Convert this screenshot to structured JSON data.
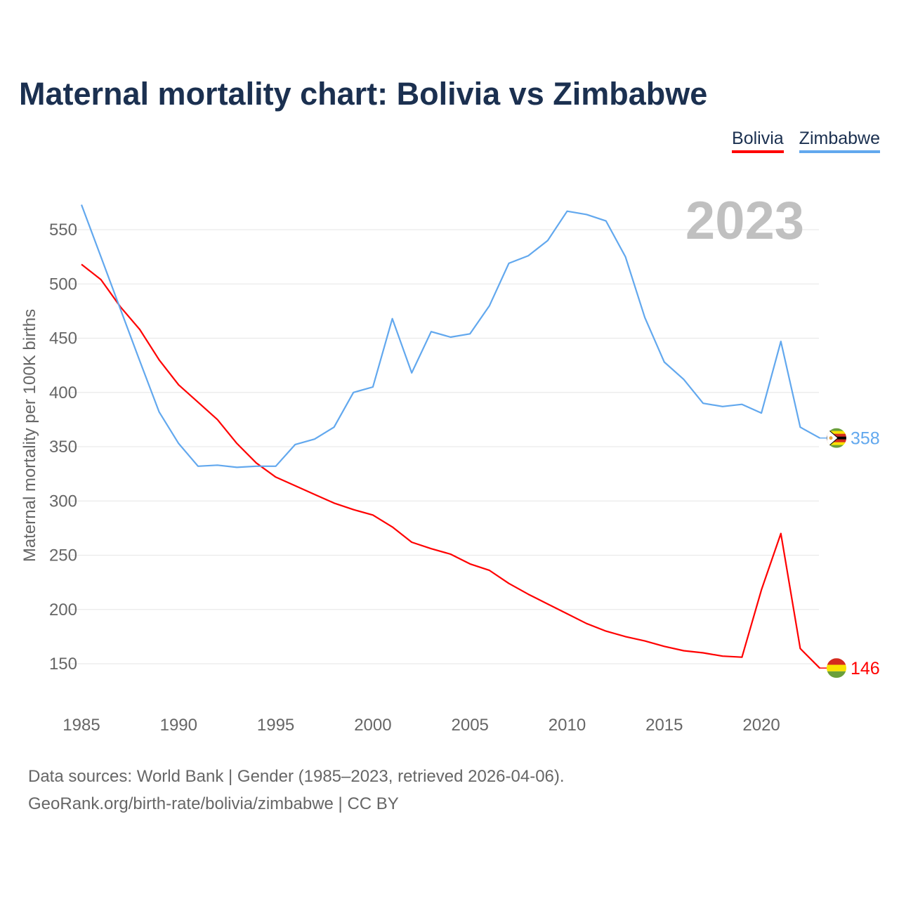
{
  "title": "Maternal mortality chart: Bolivia vs Zimbabwe",
  "legend": [
    {
      "label": "Bolivia",
      "color": "#ff0000"
    },
    {
      "label": "Zimbabwe",
      "color": "#62a8ee"
    }
  ],
  "footer": {
    "line1": "Data sources: World Bank | Gender (1985–2023, retrieved 2026-04-06).",
    "line2": "GeoRank.org/birth-rate/bolivia/zimbabwe | CC BY"
  },
  "chart_data": {
    "type": "line",
    "title": "Maternal mortality chart: Bolivia vs Zimbabwe",
    "ylabel": "Maternal mortality per 100K births",
    "xlabel": "",
    "year_watermark": "2023",
    "xlim": [
      1985,
      2023
    ],
    "ylim": [
      120,
      580
    ],
    "x_ticks": [
      1985,
      1990,
      1995,
      2000,
      2005,
      2010,
      2015,
      2020
    ],
    "y_ticks": [
      150,
      200,
      250,
      300,
      350,
      400,
      450,
      500,
      550
    ],
    "grid": true,
    "legend_placement": "top-right",
    "x": [
      1985,
      1986,
      1987,
      1988,
      1989,
      1990,
      1991,
      1992,
      1993,
      1994,
      1995,
      1996,
      1997,
      1998,
      1999,
      2000,
      2001,
      2002,
      2003,
      2004,
      2005,
      2006,
      2007,
      2008,
      2009,
      2010,
      2011,
      2012,
      2013,
      2014,
      2015,
      2016,
      2017,
      2018,
      2019,
      2020,
      2021,
      2022,
      2023
    ],
    "series": [
      {
        "name": "Bolivia",
        "color": "#ff0000",
        "end_label": "146",
        "flag": "bolivia-flag",
        "values": [
          518,
          504,
          479,
          458,
          430,
          407,
          391,
          375,
          353,
          335,
          322,
          314,
          306,
          298,
          292,
          287,
          276,
          262,
          256,
          251,
          242,
          236,
          224,
          214,
          205,
          196,
          187,
          180,
          175,
          171,
          166,
          162,
          160,
          157,
          156,
          218,
          270,
          164,
          146
        ]
      },
      {
        "name": "Zimbabwe",
        "color": "#62a8ee",
        "end_label": "358",
        "flag": "zimbabwe-flag",
        "values": [
          573,
          525,
          477,
          429,
          382,
          353,
          332,
          333,
          331,
          332,
          332,
          352,
          357,
          368,
          400,
          405,
          468,
          418,
          456,
          451,
          454,
          480,
          519,
          526,
          540,
          567,
          564,
          558,
          525,
          469,
          428,
          412,
          390,
          387,
          389,
          381,
          447,
          368,
          358
        ]
      }
    ]
  }
}
